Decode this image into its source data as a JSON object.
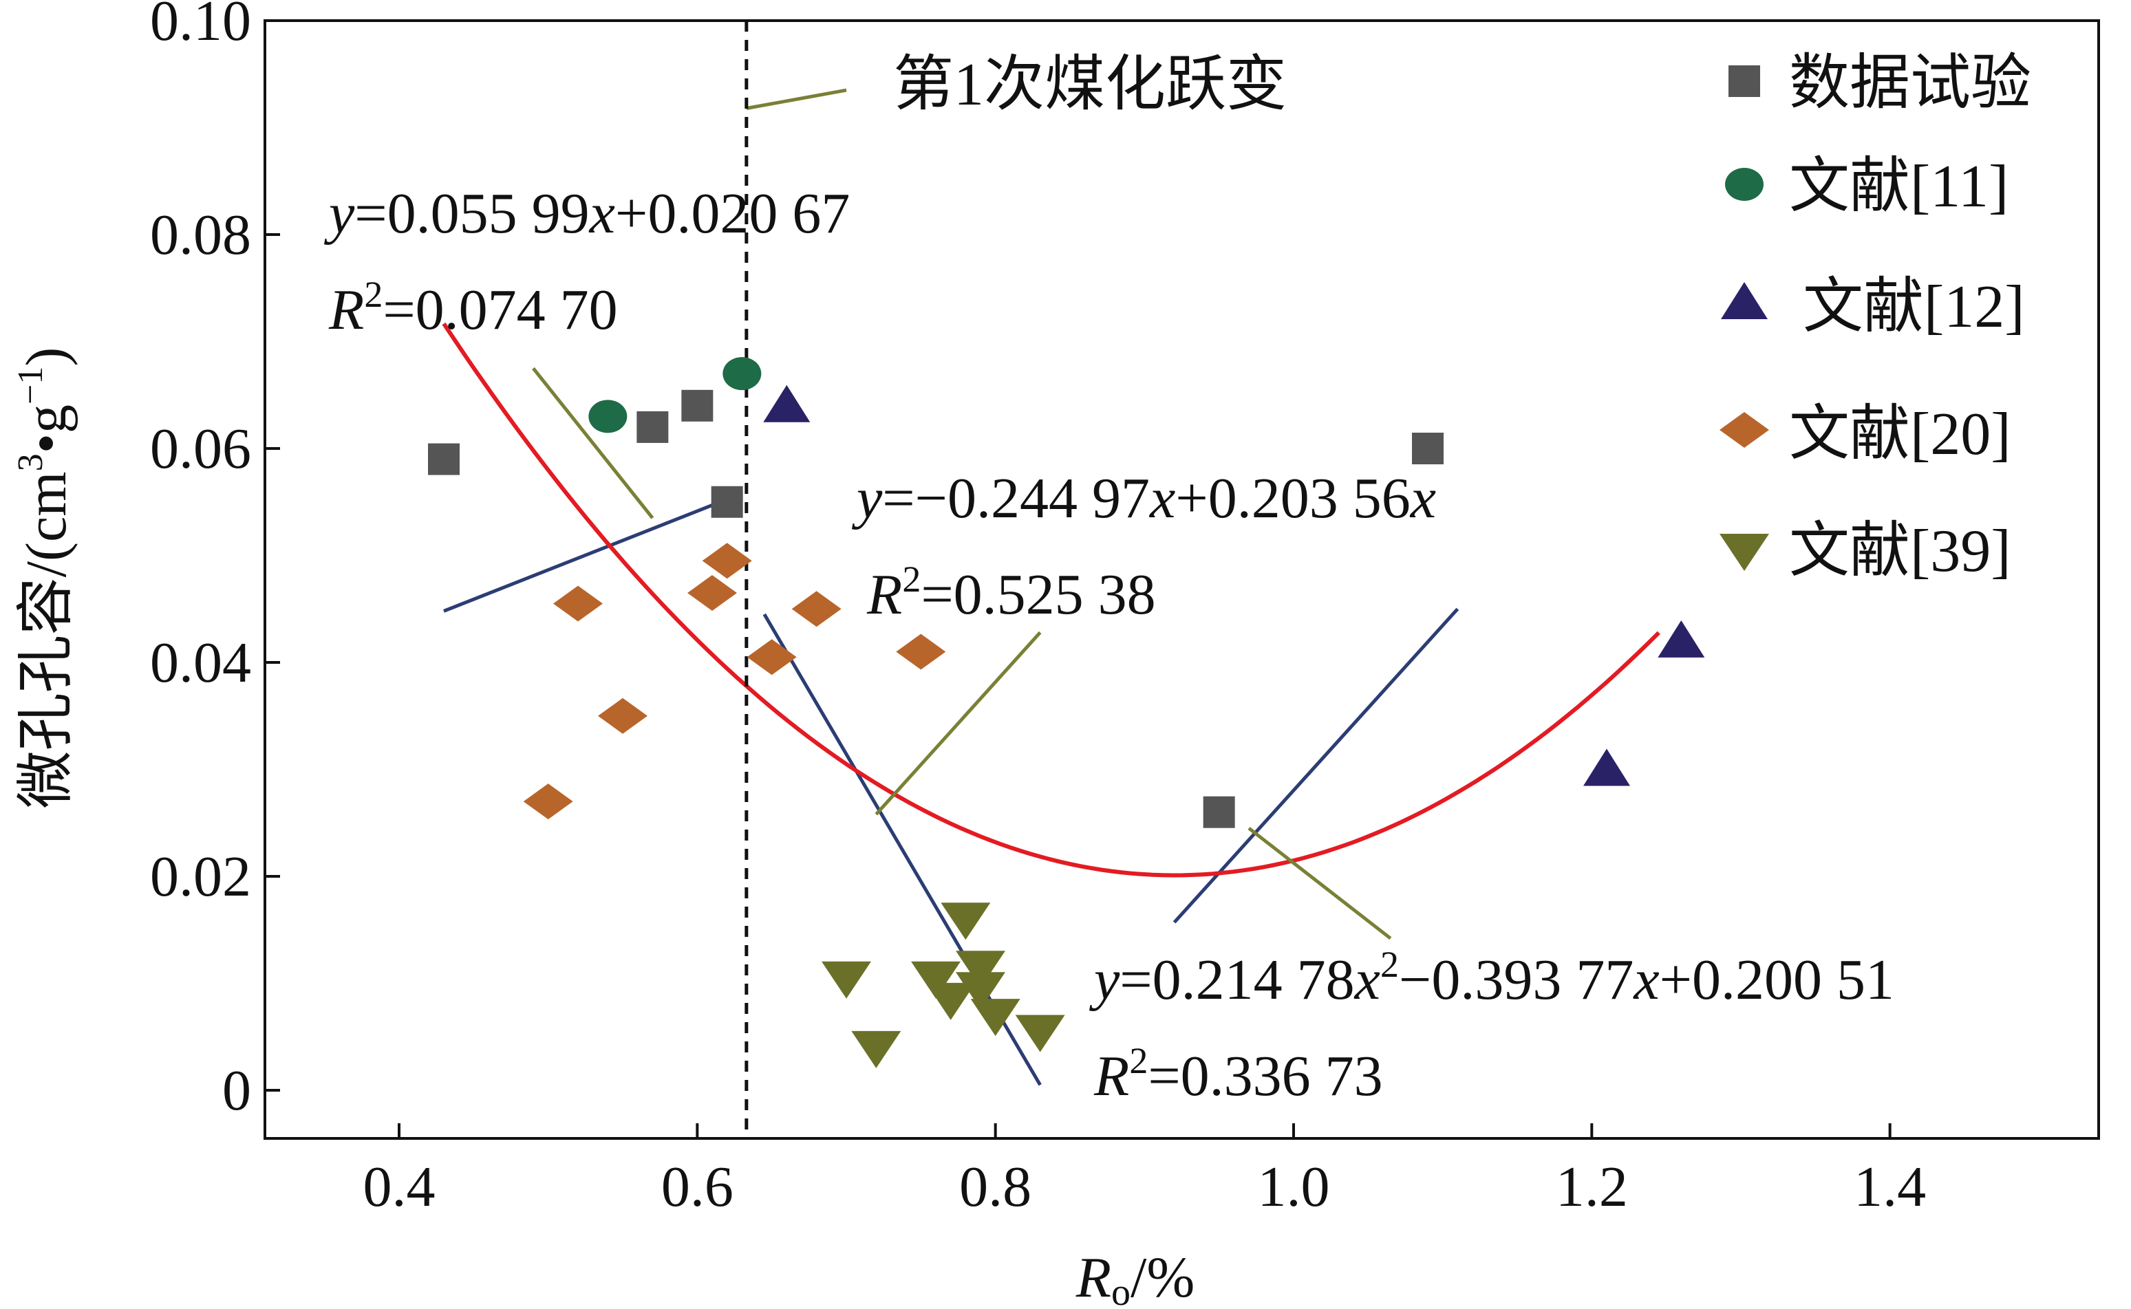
{
  "chart_data": {
    "type": "scatter",
    "xlabel": "R",
    "xlabel_sub": "o",
    "xlabel_suffix": "/%",
    "ylabel": "微孔孔容/(cm",
    "ylabel_sup1": "3",
    "ylabel_mid": "•g",
    "ylabel_sup2": "−1",
    "ylabel_end": ")",
    "xlim": [
      0.31,
      1.54
    ],
    "ylim": [
      -0.0045,
      0.1
    ],
    "x_ticks": [
      0.4,
      0.6,
      0.8,
      1.0,
      1.2,
      1.4
    ],
    "x_tick_labels": [
      "0.4",
      "0.6",
      "0.8",
      "1.0",
      "1.2",
      "1.4"
    ],
    "y_ticks": [
      0,
      0.02,
      0.04,
      0.06,
      0.08,
      0.1
    ],
    "y_tick_labels": [
      "0",
      "0.02",
      "0.04",
      "0.06",
      "0.08",
      "0.10"
    ],
    "grid": false,
    "legend_position": "top-right",
    "series": [
      {
        "name": "数据试验",
        "marker": "square",
        "color": "#555555",
        "points": [
          [
            0.43,
            0.059
          ],
          [
            0.57,
            0.062
          ],
          [
            0.6,
            0.064
          ],
          [
            0.62,
            0.055
          ],
          [
            0.95,
            0.026
          ],
          [
            1.09,
            0.06
          ]
        ]
      },
      {
        "name": "文献[11]",
        "marker": "circle",
        "color": "#1e6b47",
        "points": [
          [
            0.54,
            0.063
          ],
          [
            0.63,
            0.067
          ]
        ]
      },
      {
        "name": "文献[12]",
        "marker": "triangle-up",
        "color": "#2a2266",
        "points": [
          [
            0.66,
            0.064
          ],
          [
            1.21,
            0.03
          ],
          [
            1.26,
            0.042
          ]
        ]
      },
      {
        "name": "文献[20]",
        "marker": "diamond",
        "color": "#b8652b",
        "points": [
          [
            0.5,
            0.027
          ],
          [
            0.52,
            0.0455
          ],
          [
            0.55,
            0.035
          ],
          [
            0.61,
            0.0465
          ],
          [
            0.62,
            0.0495
          ],
          [
            0.65,
            0.0405
          ],
          [
            0.68,
            0.045
          ],
          [
            0.75,
            0.041
          ]
        ]
      },
      {
        "name": "文献[39]",
        "marker": "triangle-down",
        "color": "#6b7028",
        "points": [
          [
            0.7,
            0.0105
          ],
          [
            0.72,
            0.004
          ],
          [
            0.76,
            0.0105
          ],
          [
            0.77,
            0.0085
          ],
          [
            0.78,
            0.016
          ],
          [
            0.79,
            0.0115
          ],
          [
            0.79,
            0.0095
          ],
          [
            0.8,
            0.007
          ],
          [
            0.83,
            0.0055
          ]
        ]
      }
    ],
    "fit_lines": [
      {
        "kind": "linear",
        "color": "#2b3d73",
        "x": [
          0.43,
          0.63
        ],
        "y": [
          0.0448,
          0.0558
        ]
      },
      {
        "kind": "linear",
        "color": "#2b3d73",
        "x": [
          0.645,
          0.83
        ],
        "y": [
          0.0445,
          0.0005
        ]
      },
      {
        "kind": "linear",
        "color": "#2b3d73",
        "x": [
          0.92,
          1.11
        ],
        "y": [
          0.0157,
          0.045
        ]
      },
      {
        "kind": "quadratic",
        "color": "#e31b23",
        "x_range": [
          0.43,
          1.245
        ],
        "coeffs": [
          0.21478,
          -0.39377,
          0.20051
        ],
        "vertex": [
          0.92,
          0.0201
        ]
      }
    ],
    "leaders": [
      {
        "color": "#7a8035",
        "x": [
          0.49,
          0.57
        ],
        "y": [
          0.0675,
          0.0535
        ]
      },
      {
        "color": "#7a8035",
        "x": [
          0.72,
          0.83
        ],
        "y": [
          0.0258,
          0.0428
        ]
      },
      {
        "color": "#7a8035",
        "x": [
          0.97,
          1.065
        ],
        "y": [
          0.0245,
          0.0142
        ]
      },
      {
        "color": "#7a8035",
        "x": [
          0.633,
          0.7
        ],
        "y": [
          0.0918,
          0.0935
        ]
      }
    ],
    "vline": {
      "x": 0.633,
      "style": "dashed",
      "color": "#111111"
    },
    "annotations": {
      "transition_label": "第1次煤化跃变",
      "eq1": {
        "y": "y",
        "a": "=0.055 99",
        "x": "x",
        "b": "+0.020 67",
        "r": "R",
        "sup": "2",
        "r2": "=0.074 70"
      },
      "eq2": {
        "y": "y",
        "a": "=−0.244 97",
        "x": "x",
        "b": "+0.203 56",
        "x2": "x",
        "r": "R",
        "sup": "2",
        "r2": "=0.525 38"
      },
      "eq3": {
        "y": "y",
        "a": "=0.214 78",
        "x": "x",
        "sup": "2",
        "b": "−0.393 77",
        "x2": "x",
        "c": "+0.200 51",
        "r": "R",
        "rsup": "2",
        "r2": "=0.336 73"
      }
    }
  }
}
